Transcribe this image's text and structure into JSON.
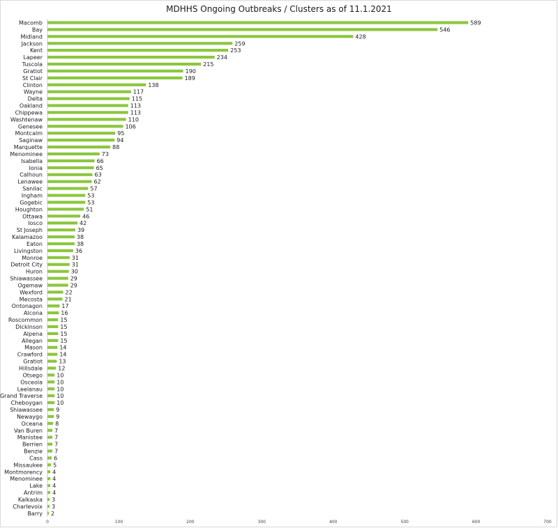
{
  "chart_data": {
    "type": "bar",
    "orientation": "horizontal",
    "title": "MDHHS Ongoing Outbreaks / Clusters as of 11.1.2021",
    "xlabel": "",
    "ylabel": "",
    "xlim": [
      0,
      700
    ],
    "xticks": [
      "0",
      "100",
      "200",
      "300",
      "400",
      "500",
      "600",
      "700"
    ],
    "grid": false,
    "bar_color": "#8cc63f",
    "categories": [
      "Macomb",
      "Bay",
      "Midland",
      "Jackson",
      "Kent",
      "Lapeer",
      "Tuscola",
      "Gratiot",
      "St Clair",
      "Clinton",
      "Wayne",
      "Delta",
      "Oakland",
      "Chippewa",
      "Washtenaw",
      "Genesee",
      "Montcalm",
      "Saginaw",
      "Marquette",
      "Menominee",
      "Isabella",
      "Ionia",
      "Calhoun",
      "Lenawee",
      "Sanilac",
      "Ingham",
      "Gogebic",
      "Houghton",
      "Ottawa",
      "Iosco",
      "St Joseph",
      "Kalamazoo",
      "Eaton",
      "Livingston",
      "Monroe",
      "Detroit City",
      "Huron",
      "Shiawassee",
      "Ogemaw",
      "Wexford",
      "Mecosta",
      "Ontonagon",
      "Alcona",
      "Roscommon",
      "Dickinson",
      "Alpena",
      "Allegan",
      "Mason",
      "Crawford",
      "Gratiot",
      "Hillsdale",
      "Otsego",
      "Osceola",
      "Leelanau",
      "Grand Traverse",
      "Cheboygan",
      "Shiawassee",
      "Newaygo",
      "Oceana",
      "Van Buren",
      "Manistee",
      "Berrien",
      "Benzie",
      "Cass",
      "Missaukee",
      "Montmorency",
      "Menominee",
      "Lake",
      "Antrim",
      "Kalkaska",
      "Charlevoix",
      "Barry"
    ],
    "values": [
      589,
      546,
      428,
      259,
      253,
      234,
      215,
      190,
      189,
      138,
      117,
      115,
      113,
      113,
      110,
      106,
      95,
      94,
      88,
      73,
      66,
      65,
      63,
      62,
      57,
      53,
      53,
      51,
      46,
      42,
      39,
      38,
      38,
      36,
      31,
      31,
      30,
      29,
      29,
      22,
      21,
      17,
      16,
      15,
      15,
      15,
      15,
      14,
      14,
      13,
      12,
      10,
      10,
      10,
      10,
      10,
      9,
      9,
      8,
      7,
      7,
      7,
      7,
      6,
      5,
      4,
      4,
      4,
      4,
      3,
      3,
      2
    ]
  }
}
